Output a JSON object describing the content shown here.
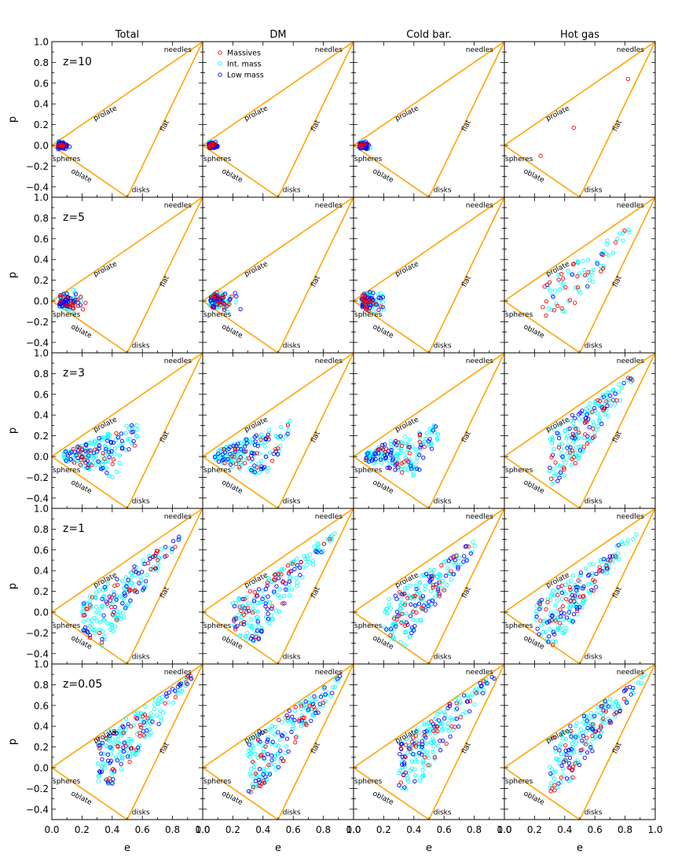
{
  "figure": {
    "column_titles": [
      "Total",
      "DM",
      "Cold bar.",
      "Hot gas"
    ],
    "row_labels": [
      "z=10",
      "z=5",
      "z=3",
      "z=1",
      "z=0.05"
    ],
    "xlabel": "e",
    "ylabel": "p",
    "region_labels": {
      "needles": "needles",
      "prolate": "prolate",
      "flat": "flat",
      "spheres": "spheres",
      "oblate": "oblate",
      "disks": "disks"
    },
    "legend": [
      "Massives",
      "Int. mass",
      "Low mass"
    ],
    "colors": {
      "massive": "#ff0000",
      "int": "#00ffff",
      "low": "#0000ff",
      "boundary": "#ffa500"
    }
  },
  "chart_data": {
    "type": "scatter",
    "grid": "5 rows x 4 columns",
    "xlim": [
      0.0,
      1.0
    ],
    "ylim": [
      -0.5,
      1.0
    ],
    "xticks": [
      0.0,
      0.2,
      0.4,
      0.6,
      0.8,
      1.0
    ],
    "yticks": [
      -0.4,
      -0.2,
      0.0,
      0.2,
      0.4,
      0.6,
      0.8,
      1.0
    ],
    "xticklabels": [
      "0.0",
      "0.2",
      "0.4",
      "0.6",
      "0.8",
      "1.0"
    ],
    "yticklabels": [
      "−0.4",
      "−0.2",
      "0.0",
      "0.2",
      "0.4",
      "0.6",
      "0.8",
      "1.0"
    ],
    "legend_placement": "top-left of DM panel, z=10 row",
    "boundary_triangle": [
      [
        0.0,
        0.0
      ],
      [
        1.0,
        1.0
      ],
      [
        0.5,
        -0.5
      ]
    ],
    "series": [
      "Massives",
      "Int. mass",
      "Low mass"
    ],
    "panels": [
      {
        "row": 0,
        "column": 0,
        "spread": "concentrated near spheres",
        "representative_points": [
          [
            0.04,
            0.0
          ],
          [
            0.06,
            0.01
          ],
          [
            0.08,
            -0.01
          ],
          [
            0.1,
            0.02
          ],
          [
            0.12,
            0.03
          ],
          [
            0.15,
            0.05
          ],
          [
            0.18,
            0.02
          ],
          [
            0.05,
            -0.04
          ]
        ]
      },
      {
        "row": 0,
        "column": 1,
        "spread": "concentrated near spheres",
        "representative_points": [
          [
            0.04,
            0.0
          ],
          [
            0.08,
            0.01
          ],
          [
            0.12,
            0.02
          ],
          [
            0.18,
            0.06
          ],
          [
            0.2,
            0.24
          ],
          [
            0.3,
            -0.15
          ],
          [
            0.45,
            -0.1
          ]
        ]
      },
      {
        "row": 0,
        "column": 2,
        "spread": "concentrated near spheres",
        "representative_points": [
          [
            0.04,
            0.0
          ],
          [
            0.08,
            0.01
          ],
          [
            0.12,
            0.04
          ],
          [
            0.16,
            0.08
          ],
          [
            0.22,
            -0.1
          ]
        ]
      },
      {
        "row": 0,
        "column": 3,
        "spread": "sparse",
        "massive_points": [
          [
            0.24,
            -0.1
          ],
          [
            0.46,
            0.17
          ],
          [
            0.82,
            0.64
          ]
        ]
      },
      {
        "row": 1,
        "column": 0,
        "spread": "spheres to e~0.3",
        "representative_points": [
          [
            0.1,
            0.0
          ],
          [
            0.15,
            0.05
          ],
          [
            0.2,
            -0.05
          ],
          [
            0.25,
            0.1
          ],
          [
            0.3,
            0.2
          ],
          [
            0.58,
            0.13
          ]
        ]
      },
      {
        "row": 1,
        "column": 1,
        "spread": "spheres to e~0.3",
        "representative_points": [
          [
            0.1,
            0.0
          ],
          [
            0.15,
            0.05
          ],
          [
            0.2,
            -0.05
          ],
          [
            0.3,
            0.25
          ],
          [
            0.45,
            -0.1
          ],
          [
            0.57,
            0.13
          ]
        ]
      },
      {
        "row": 1,
        "column": 2,
        "spread": "spheres to e~0.35",
        "representative_points": [
          [
            0.1,
            0.0
          ],
          [
            0.2,
            0.05
          ],
          [
            0.3,
            -0.15
          ],
          [
            0.6,
            0.1
          ]
        ]
      },
      {
        "row": 1,
        "column": 3,
        "spread": "spread toward needles",
        "representative_points": [
          [
            0.3,
            0.0
          ],
          [
            0.5,
            0.3
          ],
          [
            0.7,
            0.6
          ],
          [
            0.85,
            0.8
          ]
        ]
      },
      {
        "row": 2,
        "column": 0,
        "spread": "wide",
        "representative_points": [
          [
            0.2,
            0.0
          ],
          [
            0.3,
            0.1
          ],
          [
            0.4,
            0.3
          ],
          [
            0.6,
            0.4
          ],
          [
            0.75,
            0.63
          ]
        ]
      },
      {
        "row": 2,
        "column": 1,
        "spread": "wide",
        "representative_points": [
          [
            0.2,
            0.0
          ],
          [
            0.3,
            0.1
          ],
          [
            0.5,
            0.3
          ],
          [
            0.75,
            0.6
          ]
        ]
      },
      {
        "row": 2,
        "column": 2,
        "spread": "wide",
        "representative_points": [
          [
            0.2,
            0.0
          ],
          [
            0.3,
            0.1
          ],
          [
            0.5,
            0.3
          ],
          [
            0.78,
            0.72
          ]
        ]
      },
      {
        "row": 2,
        "column": 3,
        "spread": "toward needles",
        "representative_points": [
          [
            0.4,
            0.1
          ],
          [
            0.6,
            0.4
          ],
          [
            0.8,
            0.7
          ]
        ]
      },
      {
        "row": 3,
        "column": 0,
        "spread": "toward needles",
        "representative_points": [
          [
            0.3,
            0.0
          ],
          [
            0.5,
            0.2
          ],
          [
            0.7,
            0.5
          ],
          [
            0.88,
            0.78
          ]
        ]
      },
      {
        "row": 3,
        "column": 1,
        "spread": "toward needles",
        "representative_points": [
          [
            0.3,
            0.0
          ],
          [
            0.5,
            0.2
          ],
          [
            0.7,
            0.5
          ],
          [
            0.88,
            0.8
          ]
        ]
      },
      {
        "row": 3,
        "column": 2,
        "spread": "toward needles",
        "representative_points": [
          [
            0.3,
            0.0
          ],
          [
            0.5,
            0.2
          ],
          [
            0.7,
            0.5
          ],
          [
            0.9,
            0.85
          ]
        ]
      },
      {
        "row": 3,
        "column": 3,
        "spread": "toward needles",
        "representative_points": [
          [
            0.4,
            0.1
          ],
          [
            0.6,
            0.4
          ],
          [
            0.8,
            0.7
          ]
        ]
      },
      {
        "row": 4,
        "column": 0,
        "spread": "along flat edge to needles",
        "representative_points": [
          [
            0.3,
            -0.1
          ],
          [
            0.55,
            0.2
          ],
          [
            0.75,
            0.55
          ],
          [
            0.92,
            0.85
          ]
        ]
      },
      {
        "row": 4,
        "column": 1,
        "spread": "along flat edge to needles",
        "representative_points": [
          [
            0.3,
            -0.1
          ],
          [
            0.55,
            0.2
          ],
          [
            0.75,
            0.55
          ],
          [
            0.92,
            0.87
          ]
        ]
      },
      {
        "row": 4,
        "column": 2,
        "spread": "along flat edge to needles",
        "representative_points": [
          [
            0.4,
            -0.1
          ],
          [
            0.6,
            0.3
          ],
          [
            0.8,
            0.65
          ],
          [
            0.97,
            0.95
          ]
        ]
      },
      {
        "row": 4,
        "column": 3,
        "spread": "toward needles",
        "representative_points": [
          [
            0.4,
            0.1
          ],
          [
            0.6,
            0.4
          ],
          [
            0.75,
            0.6
          ]
        ]
      }
    ]
  }
}
